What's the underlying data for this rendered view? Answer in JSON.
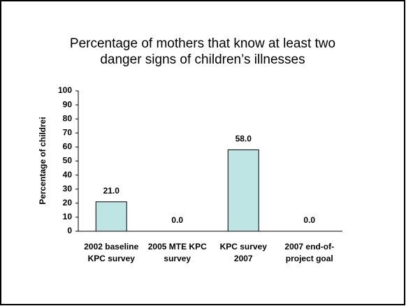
{
  "chart_data": {
    "type": "bar",
    "title": [
      "Percentage of mothers that know at least two",
      "danger signs of children’s illnesses"
    ],
    "y_label": "Percentage of childrei",
    "categories": [
      [
        "2002 baseline",
        "KPC survey"
      ],
      [
        "2005 MTE KPC",
        "survey"
      ],
      [
        "KPC survey",
        "2007"
      ],
      [
        "2007 end-of-",
        "project goal"
      ]
    ],
    "values": [
      21,
      0,
      58,
      0
    ],
    "value_labels": [
      "21.0",
      "0.0",
      "58.0",
      "0.0"
    ],
    "color": "#bfe4e4",
    "ylim": [
      0,
      100
    ],
    "yticks": [
      0,
      10,
      20,
      30,
      40,
      50,
      60,
      70,
      80,
      90,
      100
    ]
  }
}
